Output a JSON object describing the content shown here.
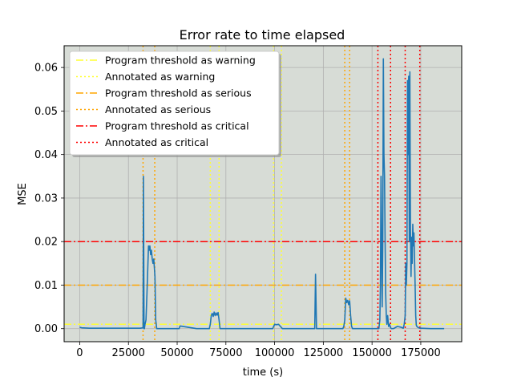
{
  "chart_data": {
    "type": "line",
    "title": "Error rate to time elapsed",
    "xlabel": "time (s)",
    "ylabel": "MSE",
    "xlim": [
      -8000,
      196000
    ],
    "ylim": [
      -0.003,
      0.065
    ],
    "grid": true,
    "plot_background": "#d7dcd6",
    "line_color": "#1f77b4",
    "x_ticks": [
      0,
      25000,
      50000,
      75000,
      100000,
      125000,
      150000,
      175000
    ],
    "x_tick_labels": [
      "0",
      "25000",
      "50000",
      "75000",
      "100000",
      "125000",
      "150000",
      "175000"
    ],
    "y_ticks": [
      0.0,
      0.01,
      0.02,
      0.03,
      0.04,
      0.05,
      0.06
    ],
    "y_tick_labels": [
      "0.00",
      "0.01",
      "0.02",
      "0.03",
      "0.04",
      "0.05",
      "0.06"
    ],
    "legend_position": "upper-left",
    "thresholds": [
      {
        "name": "Program threshold as warning",
        "value": 0.001,
        "color": "#ffff33",
        "style": "dashdot"
      },
      {
        "name": "Program threshold as serious",
        "value": 0.01,
        "color": "#ffa500",
        "style": "dashdot"
      },
      {
        "name": "Program threshold as critical",
        "value": 0.02,
        "color": "#ff0000",
        "style": "dashdot"
      }
    ],
    "annotations": [
      {
        "name": "Annotated as warning",
        "color": "#ffff33",
        "style": "dotted",
        "x": [
          67000,
          71500,
          99500,
          103500
        ]
      },
      {
        "name": "Annotated as serious",
        "color": "#ffa500",
        "style": "dotted",
        "x": [
          32500,
          38500,
          136000,
          138500
        ]
      },
      {
        "name": "Annotated as critical",
        "color": "#ff0000",
        "style": "dotted",
        "x": [
          153000,
          159500,
          167000,
          174500
        ]
      }
    ],
    "legend": [
      "Program threshold as warning",
      "Annotated as warning",
      "Program threshold as serious",
      "Annotated as serious",
      "Program threshold as critical",
      "Annotated as critical"
    ],
    "series": [
      {
        "x": [
          0,
          1000,
          5000,
          15000,
          25000,
          31000,
          32500,
          32700,
          33000,
          33200,
          33500,
          34000,
          34500,
          35000,
          35300,
          35600,
          36000,
          36400,
          36800,
          37200,
          37600,
          38000,
          38300,
          38600,
          39000,
          39500,
          45000,
          51000,
          51500,
          60000,
          66500,
          67000,
          67500,
          68000,
          68500,
          69000,
          69500,
          70000,
          70500,
          71000,
          71500,
          72000,
          72500,
          80000,
          90000,
          99000,
          99500,
          100000,
          101000,
          102000,
          103000,
          104000,
          110000,
          120000,
          120600,
          121000,
          121500,
          130000,
          135000,
          135500,
          136000,
          136500,
          137000,
          137500,
          138000,
          138500,
          139000,
          139500,
          140000,
          145000,
          150000,
          153000,
          153500,
          154000,
          154300,
          154600,
          154900,
          155200,
          155500,
          155800,
          156100,
          156400,
          156700,
          157000,
          157300,
          157600,
          158000,
          158500,
          159000,
          159500,
          160000,
          161000,
          163000,
          165000,
          166000,
          166500,
          167000,
          167300,
          167600,
          167900,
          168200,
          168500,
          168800,
          169100,
          169400,
          169700,
          170000,
          170300,
          170600,
          170900,
          171200,
          171500,
          171800,
          172100,
          172400,
          172700,
          173000,
          173500,
          174000,
          174500,
          175000,
          180000,
          187000
        ],
        "y": [
          0.0003,
          0.0002,
          0.0001,
          0.0001,
          0.0001,
          0.0001,
          0.0002,
          0.035,
          0.0,
          0.0,
          0.001,
          0.002,
          0.008,
          0.015,
          0.019,
          0.018,
          0.019,
          0.017,
          0.018,
          0.016,
          0.015,
          0.016,
          0.014,
          0.012,
          0.002,
          0.0,
          0.0,
          0.0,
          0.0006,
          0.0,
          0.0,
          0.001,
          0.003,
          0.0035,
          0.0028,
          0.0038,
          0.003,
          0.0036,
          0.0031,
          0.0037,
          0.002,
          0.0,
          0.0,
          0.0,
          0.0,
          0.0,
          0.0005,
          0.001,
          0.0009,
          0.001,
          0.0005,
          0.0,
          0.0,
          0.0,
          0.0,
          0.0125,
          0.0,
          0.0,
          0.0,
          0.0005,
          0.002,
          0.007,
          0.006,
          0.0065,
          0.0055,
          0.0064,
          0.003,
          0.0005,
          0.0,
          0.0,
          0.0,
          0.0,
          0.0,
          0.002,
          0.01,
          0.035,
          0.02,
          0.005,
          0.02,
          0.062,
          0.04,
          0.035,
          0.02,
          0.008,
          0.003,
          0.001,
          0.003,
          0.0005,
          0.001,
          0.0002,
          0.0,
          0.0,
          0.0005,
          0.0003,
          0.0001,
          0.001,
          0.003,
          0.015,
          0.01,
          0.015,
          0.057,
          0.04,
          0.058,
          0.02,
          0.059,
          0.023,
          0.012,
          0.021,
          0.015,
          0.024,
          0.019,
          0.022,
          0.016,
          0.01,
          0.003,
          0.0008,
          0.0005,
          0.0003,
          0.0002,
          0.0001,
          0.0001,
          0.0,
          0.0
        ]
      }
    ]
  }
}
